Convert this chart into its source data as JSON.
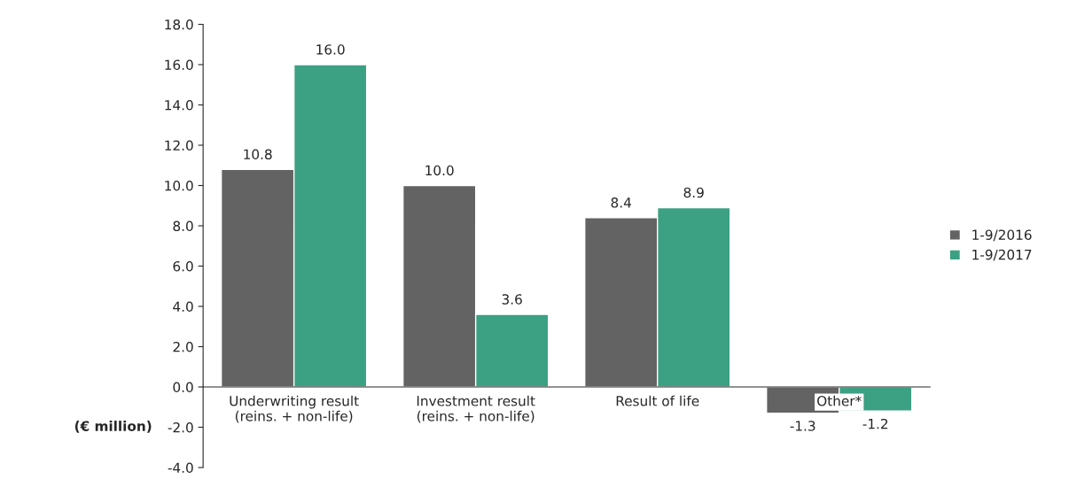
{
  "chart_data": {
    "type": "bar",
    "ylabel": "(€ million)",
    "categories": [
      "Underwriting result\n(reins. + non-life)",
      "Investment result\n(reins. + non-life)",
      "Result of life",
      "Other*"
    ],
    "series": [
      {
        "name": "1-9/2016",
        "color": "#636363",
        "values": [
          10.8,
          10.0,
          8.4,
          -1.3
        ],
        "value_labels": [
          "10.8",
          "10.0",
          "8.4",
          "-1.3"
        ]
      },
      {
        "name": "1-9/2017",
        "color": "#3ca083",
        "values": [
          16.0,
          3.6,
          8.9,
          -1.2
        ],
        "value_labels": [
          "16.0",
          "3.6",
          "8.9",
          "-1.2"
        ]
      }
    ],
    "ylim": [
      -4.0,
      18.0
    ],
    "yticks": [
      {
        "value": -4,
        "label": "-4.0"
      },
      {
        "value": -2,
        "label": "-2.0"
      },
      {
        "value": 0,
        "label": "0.0"
      },
      {
        "value": 2,
        "label": "2.0"
      },
      {
        "value": 4,
        "label": "4.0"
      },
      {
        "value": 6,
        "label": "6.0"
      },
      {
        "value": 8,
        "label": "8.0"
      },
      {
        "value": 10,
        "label": "10.0"
      },
      {
        "value": 12,
        "label": "12.0"
      },
      {
        "value": 14,
        "label": "14.0"
      },
      {
        "value": 16,
        "label": "16.0"
      },
      {
        "value": 18,
        "label": "18.0"
      }
    ],
    "grid": false,
    "legend": "right"
  }
}
